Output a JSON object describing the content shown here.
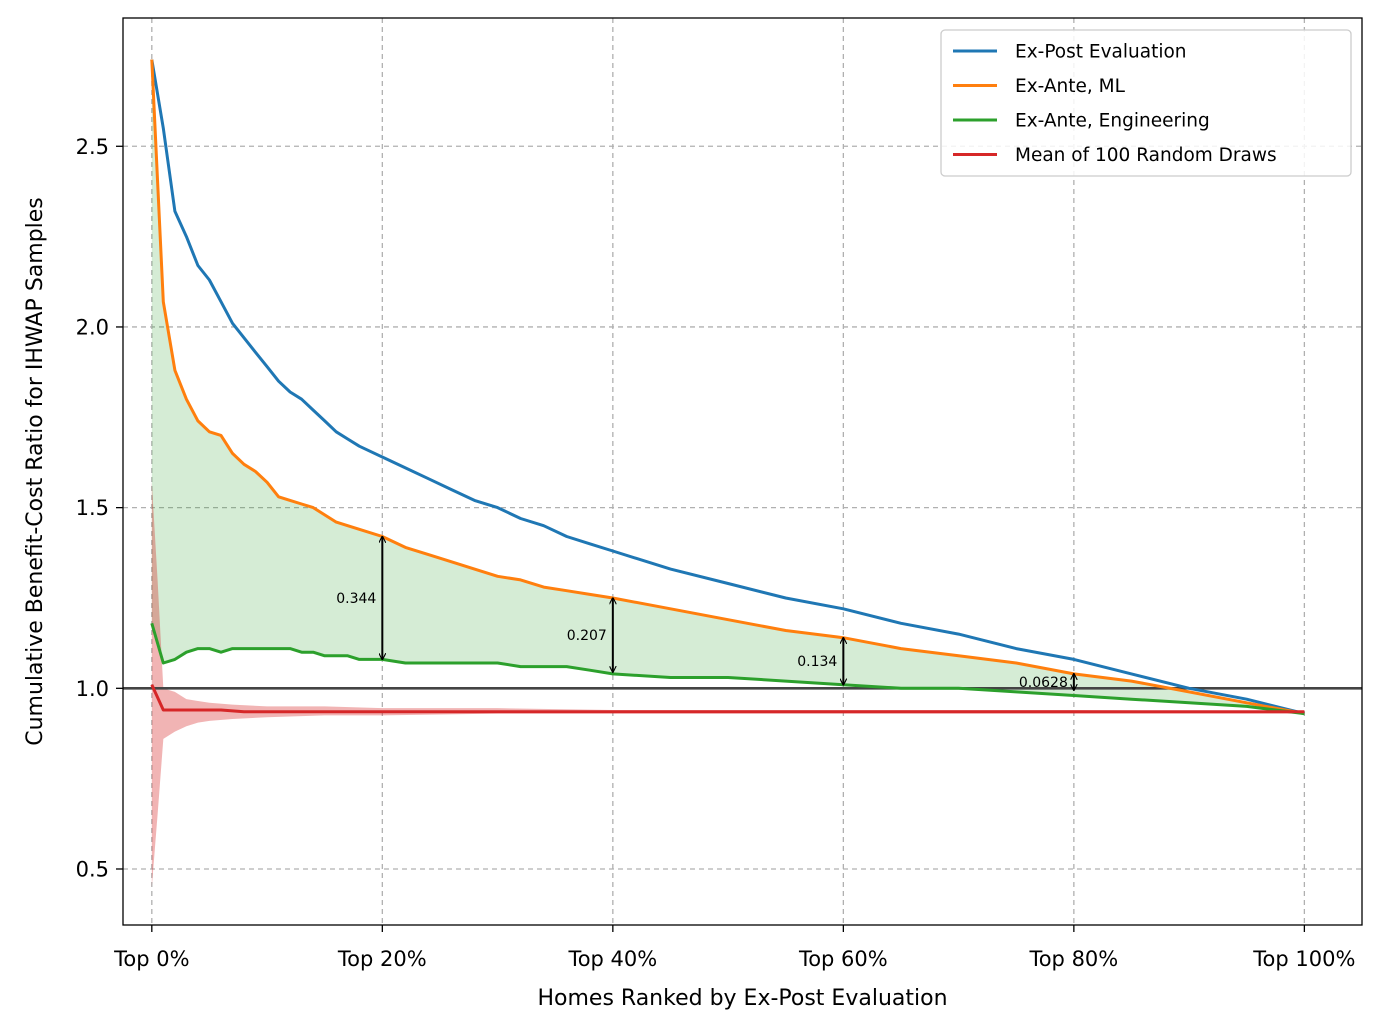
{
  "chart_data": {
    "type": "line",
    "title": "",
    "xlabel": "Homes Ranked by Ex-Post Evaluation",
    "ylabel": "Cumulative Benefit-Cost Ratio for IHWAP Samples",
    "xlim": [
      -2.5,
      105
    ],
    "ylim": [
      0.345,
      2.855
    ],
    "x_ticks": [
      0,
      20,
      40,
      60,
      80,
      100
    ],
    "x_tick_labels": [
      "Top 0%",
      "Top 20%",
      "Top 40%",
      "Top 60%",
      "Top 80%",
      "Top 100%"
    ],
    "y_ticks": [
      0.5,
      1.0,
      1.5,
      2.0,
      2.5
    ],
    "y_tick_labels": [
      "0.5",
      "1.0",
      "1.5",
      "2.0",
      "2.5"
    ],
    "grid": true,
    "legend_position": "top-right",
    "reference_line_y": 1.0,
    "series": [
      {
        "name": "Ex-Post Evaluation",
        "color": "#1f77b4",
        "x": [
          0,
          1,
          2,
          3,
          4,
          5,
          6,
          7,
          8,
          9,
          10,
          11,
          12,
          13,
          14,
          15,
          16,
          17,
          18,
          20,
          22,
          24,
          26,
          28,
          30,
          32,
          34,
          36,
          38,
          40,
          45,
          50,
          55,
          60,
          65,
          70,
          75,
          80,
          85,
          90,
          95,
          100
        ],
        "y": [
          2.74,
          2.55,
          2.32,
          2.25,
          2.17,
          2.13,
          2.07,
          2.01,
          1.97,
          1.93,
          1.89,
          1.85,
          1.82,
          1.8,
          1.77,
          1.74,
          1.71,
          1.69,
          1.67,
          1.64,
          1.61,
          1.58,
          1.55,
          1.52,
          1.5,
          1.47,
          1.45,
          1.42,
          1.4,
          1.38,
          1.33,
          1.29,
          1.25,
          1.22,
          1.18,
          1.15,
          1.11,
          1.08,
          1.04,
          1.0,
          0.97,
          0.93
        ]
      },
      {
        "name": "Ex-Ante, ML",
        "color": "#ff7f0e",
        "x": [
          0,
          1,
          2,
          3,
          4,
          5,
          6,
          7,
          8,
          9,
          10,
          11,
          12,
          13,
          14,
          15,
          16,
          17,
          18,
          20,
          22,
          24,
          26,
          28,
          30,
          32,
          34,
          36,
          38,
          40,
          45,
          50,
          55,
          60,
          65,
          70,
          75,
          80,
          85,
          90,
          95,
          100
        ],
        "y": [
          2.74,
          2.07,
          1.88,
          1.8,
          1.74,
          1.71,
          1.7,
          1.65,
          1.62,
          1.6,
          1.57,
          1.53,
          1.52,
          1.51,
          1.5,
          1.48,
          1.46,
          1.45,
          1.44,
          1.42,
          1.39,
          1.37,
          1.35,
          1.33,
          1.31,
          1.3,
          1.28,
          1.27,
          1.26,
          1.25,
          1.22,
          1.19,
          1.16,
          1.14,
          1.11,
          1.09,
          1.07,
          1.04,
          1.02,
          0.99,
          0.96,
          0.93
        ]
      },
      {
        "name": "Ex-Ante, Engineering",
        "color": "#2ca02c",
        "x": [
          0,
          1,
          2,
          3,
          4,
          5,
          6,
          7,
          8,
          9,
          10,
          11,
          12,
          13,
          14,
          15,
          16,
          17,
          18,
          20,
          22,
          24,
          26,
          28,
          30,
          32,
          34,
          36,
          38,
          40,
          45,
          50,
          55,
          60,
          65,
          70,
          75,
          80,
          85,
          90,
          95,
          100
        ],
        "y": [
          1.18,
          1.07,
          1.08,
          1.1,
          1.11,
          1.11,
          1.1,
          1.11,
          1.11,
          1.11,
          1.11,
          1.11,
          1.11,
          1.1,
          1.1,
          1.09,
          1.09,
          1.09,
          1.08,
          1.08,
          1.07,
          1.07,
          1.07,
          1.07,
          1.07,
          1.06,
          1.06,
          1.06,
          1.05,
          1.04,
          1.03,
          1.03,
          1.02,
          1.01,
          1.0,
          1.0,
          0.99,
          0.98,
          0.97,
          0.96,
          0.95,
          0.93
        ]
      },
      {
        "name": "Mean of 100 Random Draws",
        "color": "#d62728",
        "x": [
          0,
          1,
          2,
          3,
          4,
          5,
          6,
          8,
          10,
          15,
          20,
          30,
          40,
          50,
          60,
          70,
          80,
          90,
          100
        ],
        "y": [
          1.01,
          0.94,
          0.94,
          0.94,
          0.94,
          0.94,
          0.94,
          0.935,
          0.935,
          0.935,
          0.935,
          0.935,
          0.935,
          0.935,
          0.935,
          0.935,
          0.935,
          0.935,
          0.935
        ]
      }
    ],
    "bands": [
      {
        "between": [
          "Ex-Ante, ML",
          "Ex-Ante, Engineering"
        ],
        "color": "#2ca02c",
        "opacity": 0.2
      },
      {
        "about": "Mean of 100 Random Draws",
        "color": "#d62728",
        "opacity": 0.35,
        "x": [
          0,
          0.5,
          1,
          2,
          3,
          4,
          5,
          7,
          10,
          15,
          20,
          30,
          40,
          60,
          80,
          100
        ],
        "upper": [
          1.57,
          1.3,
          1.0,
          0.99,
          0.97,
          0.965,
          0.96,
          0.955,
          0.95,
          0.95,
          0.945,
          0.945,
          0.94,
          0.94,
          0.94,
          0.935
        ],
        "lower": [
          0.45,
          0.65,
          0.86,
          0.88,
          0.895,
          0.905,
          0.91,
          0.915,
          0.92,
          0.925,
          0.925,
          0.93,
          0.93,
          0.93,
          0.93,
          0.93
        ]
      }
    ],
    "annotations": [
      {
        "x": 20,
        "y_low": 1.08,
        "y_high": 1.42,
        "text": "0.344"
      },
      {
        "x": 40,
        "y_low": 1.045,
        "y_high": 1.25,
        "text": "0.207"
      },
      {
        "x": 60,
        "y_low": 1.01,
        "y_high": 1.14,
        "text": "0.134"
      },
      {
        "x": 80,
        "y_low": 0.995,
        "y_high": 1.04,
        "text": "0.0628"
      }
    ]
  }
}
